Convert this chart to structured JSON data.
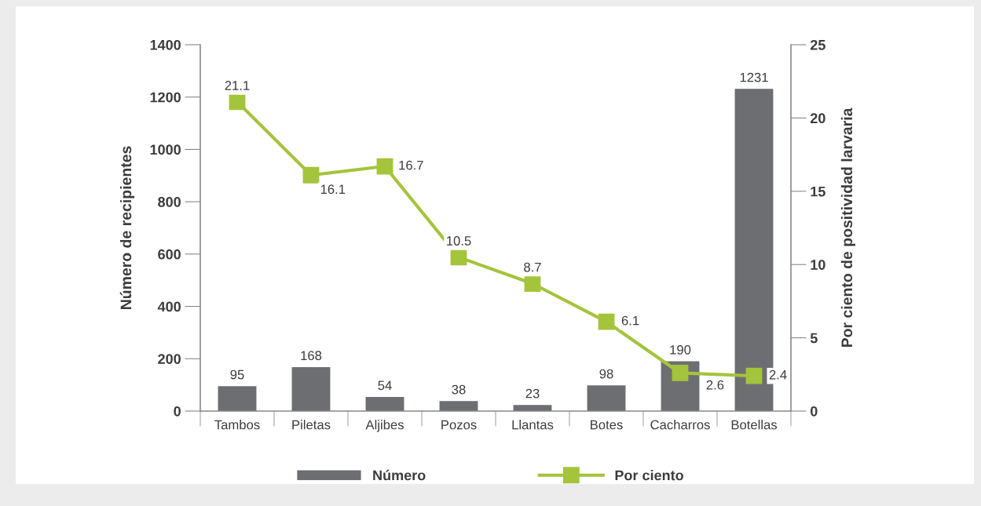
{
  "chart_data": {
    "type": "bar",
    "ylabel": "Número de recipientes",
    "y2label": "Por ciento de positividad larvaria",
    "categories": [
      "Tambos",
      "Piletas",
      "Aljibes",
      "Pozos",
      "Llantas",
      "Botes",
      "Cacharros",
      "Botellas"
    ],
    "series": [
      {
        "name": "Número",
        "color": "#6d6e71",
        "values": [
          95,
          168,
          54,
          38,
          23,
          98,
          190,
          1231
        ]
      },
      {
        "name": "Por ciento",
        "type": "line",
        "axis": "y2",
        "color": "#a4c43c",
        "marker": "square",
        "values": [
          21.1,
          16.1,
          16.7,
          10.5,
          8.7,
          6.1,
          2.6,
          2.4
        ]
      }
    ],
    "ylim": [
      0,
      1400
    ],
    "yticks": [
      0,
      200,
      400,
      600,
      800,
      1000,
      1200,
      1400
    ],
    "y2lim": [
      0,
      25
    ],
    "y2ticks": [
      0,
      5,
      10,
      15,
      20,
      25
    ],
    "data_labels": true,
    "grid": false,
    "legend": "bottom"
  }
}
